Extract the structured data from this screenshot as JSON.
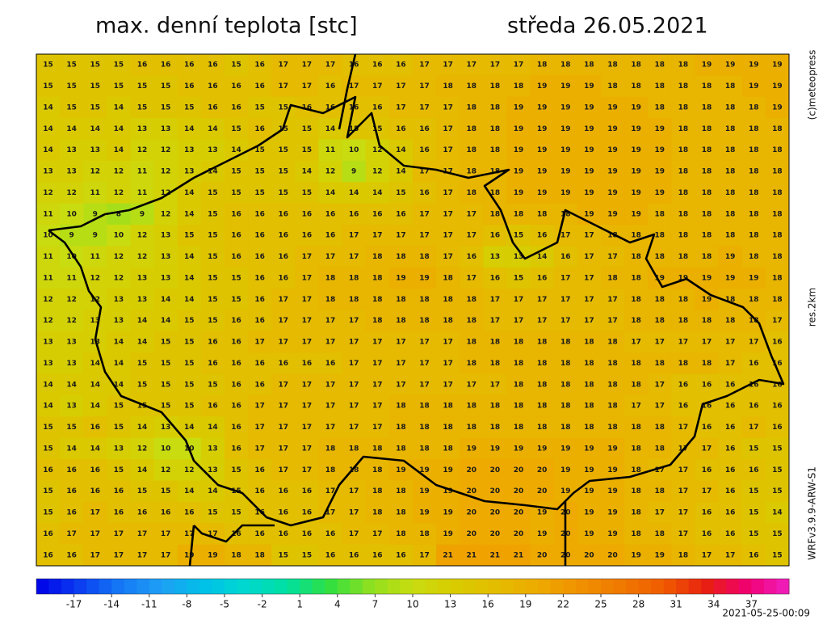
{
  "header": {
    "title": "max. denní teplota [stc]",
    "date": "středa 26.05.2021"
  },
  "side_labels": {
    "copyright": "(c)meteopress",
    "resolution": "res.2km",
    "model": "WRFv3.9.9-ARW-S1"
  },
  "map": {
    "rows": [
      [
        15,
        15,
        15,
        15,
        16,
        16,
        16,
        16,
        15,
        16,
        17,
        17,
        17,
        16,
        16,
        16,
        17,
        17,
        17,
        17,
        17,
        18,
        18,
        18,
        18,
        18,
        18,
        18,
        19,
        19,
        19,
        19
      ],
      [
        15,
        15,
        15,
        15,
        15,
        15,
        16,
        16,
        16,
        16,
        17,
        17,
        16,
        17,
        17,
        17,
        17,
        18,
        18,
        18,
        18,
        19,
        19,
        19,
        18,
        18,
        18,
        18,
        18,
        18,
        19,
        19
      ],
      [
        14,
        15,
        15,
        14,
        15,
        15,
        15,
        16,
        16,
        15,
        15,
        16,
        16,
        16,
        16,
        17,
        17,
        17,
        18,
        18,
        19,
        19,
        19,
        19,
        19,
        19,
        18,
        18,
        18,
        18,
        18,
        19
      ],
      [
        14,
        14,
        14,
        14,
        13,
        13,
        14,
        14,
        15,
        16,
        15,
        15,
        14,
        15,
        15,
        16,
        16,
        17,
        18,
        18,
        19,
        19,
        19,
        19,
        19,
        19,
        19,
        18,
        18,
        18,
        18,
        18
      ],
      [
        14,
        13,
        13,
        14,
        12,
        12,
        13,
        13,
        14,
        15,
        15,
        15,
        11,
        10,
        12,
        14,
        16,
        17,
        18,
        18,
        19,
        19,
        19,
        19,
        19,
        19,
        19,
        18,
        18,
        18,
        18,
        18
      ],
      [
        13,
        13,
        12,
        12,
        11,
        12,
        13,
        14,
        15,
        15,
        15,
        14,
        12,
        9,
        12,
        14,
        17,
        17,
        18,
        18,
        19,
        19,
        19,
        19,
        19,
        19,
        19,
        18,
        18,
        18,
        18,
        18
      ],
      [
        12,
        12,
        11,
        12,
        11,
        12,
        14,
        15,
        15,
        15,
        15,
        15,
        14,
        14,
        14,
        15,
        16,
        17,
        18,
        18,
        19,
        19,
        19,
        19,
        19,
        19,
        19,
        18,
        18,
        18,
        18,
        18
      ],
      [
        11,
        10,
        9,
        8,
        9,
        12,
        14,
        15,
        16,
        16,
        16,
        16,
        16,
        16,
        16,
        16,
        17,
        17,
        17,
        18,
        18,
        18,
        18,
        19,
        19,
        19,
        18,
        18,
        18,
        18,
        18,
        18
      ],
      [
        10,
        9,
        9,
        10,
        12,
        13,
        15,
        15,
        16,
        16,
        16,
        16,
        16,
        17,
        17,
        17,
        17,
        17,
        17,
        16,
        15,
        16,
        17,
        17,
        18,
        18,
        18,
        18,
        18,
        18,
        18,
        18
      ],
      [
        11,
        10,
        11,
        12,
        12,
        13,
        14,
        15,
        16,
        16,
        16,
        17,
        17,
        17,
        18,
        18,
        18,
        17,
        16,
        13,
        13,
        14,
        16,
        17,
        17,
        18,
        18,
        18,
        18,
        19,
        18,
        18
      ],
      [
        11,
        11,
        12,
        12,
        13,
        13,
        14,
        15,
        15,
        16,
        16,
        17,
        18,
        18,
        18,
        19,
        19,
        18,
        17,
        16,
        15,
        16,
        17,
        17,
        18,
        18,
        19,
        19,
        19,
        19,
        19,
        18
      ],
      [
        12,
        12,
        12,
        13,
        13,
        14,
        14,
        15,
        15,
        16,
        17,
        17,
        18,
        18,
        18,
        18,
        18,
        18,
        18,
        17,
        17,
        17,
        17,
        17,
        17,
        18,
        18,
        18,
        19,
        18,
        18,
        18
      ],
      [
        12,
        12,
        13,
        13,
        14,
        14,
        15,
        15,
        16,
        16,
        17,
        17,
        17,
        17,
        18,
        18,
        18,
        18,
        18,
        17,
        17,
        17,
        17,
        17,
        17,
        18,
        18,
        18,
        18,
        18,
        18,
        17
      ],
      [
        13,
        13,
        13,
        14,
        14,
        15,
        15,
        16,
        16,
        17,
        17,
        17,
        17,
        17,
        17,
        17,
        17,
        17,
        18,
        18,
        18,
        18,
        18,
        18,
        18,
        17,
        17,
        17,
        17,
        17,
        17,
        16
      ],
      [
        13,
        13,
        14,
        14,
        15,
        15,
        15,
        16,
        16,
        16,
        16,
        16,
        16,
        17,
        17,
        17,
        17,
        17,
        18,
        18,
        18,
        18,
        18,
        18,
        18,
        18,
        18,
        18,
        18,
        17,
        16,
        16
      ],
      [
        14,
        14,
        14,
        14,
        15,
        15,
        15,
        15,
        16,
        16,
        17,
        17,
        17,
        17,
        17,
        17,
        17,
        17,
        17,
        17,
        18,
        18,
        18,
        18,
        18,
        18,
        17,
        16,
        16,
        16,
        16,
        16
      ],
      [
        14,
        13,
        14,
        15,
        15,
        15,
        15,
        16,
        16,
        17,
        17,
        17,
        17,
        17,
        17,
        18,
        18,
        18,
        18,
        18,
        18,
        18,
        18,
        18,
        18,
        17,
        17,
        16,
        16,
        16,
        16,
        16
      ],
      [
        15,
        15,
        16,
        15,
        14,
        13,
        14,
        14,
        16,
        17,
        17,
        17,
        17,
        17,
        17,
        18,
        18,
        18,
        18,
        18,
        18,
        18,
        18,
        18,
        18,
        18,
        18,
        17,
        16,
        16,
        17,
        16
      ],
      [
        15,
        14,
        14,
        13,
        12,
        10,
        10,
        13,
        16,
        17,
        17,
        17,
        18,
        18,
        18,
        18,
        18,
        18,
        19,
        19,
        19,
        19,
        19,
        19,
        19,
        18,
        18,
        17,
        17,
        16,
        15,
        15
      ],
      [
        16,
        16,
        16,
        15,
        14,
        12,
        12,
        13,
        15,
        16,
        17,
        17,
        18,
        18,
        18,
        19,
        19,
        19,
        20,
        20,
        20,
        20,
        19,
        19,
        19,
        18,
        17,
        17,
        16,
        16,
        16,
        15
      ],
      [
        15,
        16,
        16,
        16,
        15,
        15,
        14,
        14,
        15,
        16,
        16,
        16,
        17,
        17,
        18,
        18,
        19,
        19,
        20,
        20,
        20,
        20,
        19,
        19,
        19,
        18,
        18,
        17,
        17,
        16,
        15,
        15
      ],
      [
        15,
        16,
        17,
        16,
        16,
        16,
        16,
        15,
        15,
        16,
        16,
        16,
        17,
        17,
        18,
        18,
        19,
        19,
        20,
        20,
        20,
        19,
        20,
        19,
        19,
        18,
        17,
        17,
        16,
        16,
        15,
        14
      ],
      [
        16,
        17,
        17,
        17,
        17,
        17,
        17,
        17,
        16,
        16,
        16,
        16,
        16,
        17,
        17,
        18,
        18,
        19,
        20,
        20,
        20,
        19,
        20,
        19,
        19,
        18,
        18,
        17,
        16,
        16,
        15,
        15
      ],
      [
        16,
        16,
        17,
        17,
        17,
        17,
        19,
        19,
        18,
        18,
        15,
        15,
        16,
        16,
        16,
        16,
        17,
        21,
        21,
        21,
        21,
        20,
        20,
        20,
        20,
        19,
        19,
        18,
        17,
        17,
        16,
        15
      ]
    ]
  },
  "colorbar": {
    "range": [
      -20,
      40
    ],
    "ticks": [
      -17,
      -14,
      -11,
      -8,
      -5,
      -2,
      1,
      4,
      7,
      10,
      13,
      16,
      19,
      22,
      25,
      28,
      31,
      34,
      37
    ],
    "colors": [
      "#0000e6",
      "#0a3cf0",
      "#1478f5",
      "#1ea0f5",
      "#00c0e8",
      "#00d8d0",
      "#00e0a0",
      "#30e040",
      "#90e020",
      "#c8dc10",
      "#d8cc00",
      "#e4bc00",
      "#eeaa00",
      "#f09000",
      "#f07800",
      "#f05c00",
      "#e82010",
      "#f00070",
      "#f020c0"
    ]
  },
  "timestamp": "2021-05-25-00:09"
}
